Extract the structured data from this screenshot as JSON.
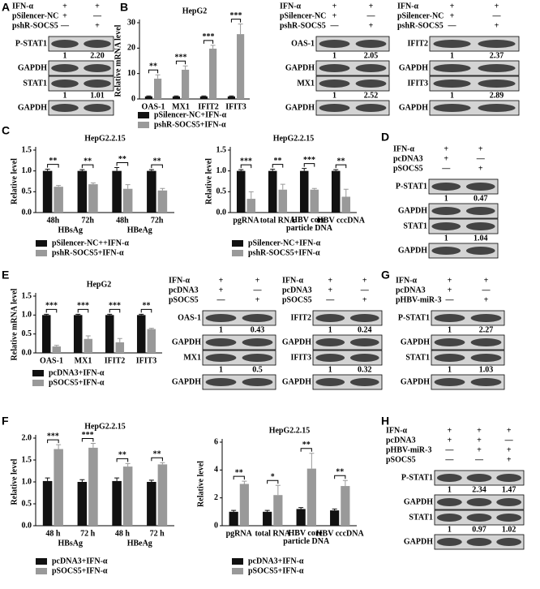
{
  "panel_letters": [
    "A",
    "B",
    "C",
    "D",
    "E",
    "F",
    "G",
    "H"
  ],
  "chart_data": [
    {
      "type": "bar",
      "title": "HepG2",
      "y_label": "Relative mRNA level",
      "categories": [
        "OAS-1",
        "MX1",
        "IFIT2",
        "IFIT3"
      ],
      "series": [
        {
          "name": "pSilencer-NC+IFN-α",
          "color": "#111111",
          "values": [
            1,
            1,
            1,
            1
          ],
          "errors": [
            0.2,
            0.2,
            0.2,
            0.2
          ]
        },
        {
          "name": "pshR-SOCS5+IFN-α",
          "color": "#999999",
          "values": [
            8,
            11.5,
            19.8,
            25.5
          ],
          "errors": [
            1.5,
            1.5,
            1.3,
            4
          ]
        }
      ],
      "significance": [
        "**",
        "***",
        "***",
        "***"
      ],
      "ylim": [
        0,
        30
      ],
      "yticks": [
        0,
        10,
        20,
        30
      ],
      "legend": "bottom"
    },
    {
      "type": "bar",
      "title": "HepG2.2.15",
      "y_label": "Relative level",
      "categories": [
        "48h",
        "72h",
        "48h",
        "72h"
      ],
      "group_labels": [
        "HBsAg",
        null,
        "HBeAg",
        null
      ],
      "series": [
        {
          "name": "pSilencer-NC++IFN-α",
          "color": "#111111",
          "values": [
            1,
            1,
            1,
            1
          ],
          "errors": [
            0.04,
            0.03,
            0.08,
            0.03
          ]
        },
        {
          "name": "pshR-SOCS5+IFN-α",
          "color": "#999999",
          "values": [
            0.62,
            0.68,
            0.57,
            0.53
          ],
          "errors": [
            0.03,
            0.03,
            0.1,
            0.05
          ]
        }
      ],
      "significance": [
        "**",
        "**",
        "**",
        "**"
      ],
      "ylim": [
        0,
        1.5
      ],
      "yticks": [
        {
          "value": 0,
          "label": "0.0"
        },
        0.5,
        {
          "value": 1,
          "label": "1.0"
        },
        1.5
      ],
      "legend": "bottom"
    },
    {
      "type": "bar",
      "title": "HepG2.2.15",
      "y_label": "Relative level",
      "categories": [
        "pgRNA",
        "total RNA",
        "HBV core particle DNA",
        "HBV cccDNA"
      ],
      "series": [
        {
          "name": "pSilencer-NC+IFN-α",
          "color": "#111111",
          "values": [
            1,
            1,
            1,
            1
          ],
          "errors": [
            0.03,
            0.04,
            0.06,
            0.03
          ]
        },
        {
          "name": "pshR-SOCS5+IFN-α",
          "color": "#999999",
          "values": [
            0.33,
            0.55,
            0.55,
            0.38
          ],
          "errors": [
            0.17,
            0.13,
            0.03,
            0.18
          ]
        }
      ],
      "significance": [
        "***",
        "**",
        "***",
        "**"
      ],
      "ylim": [
        0,
        1.5
      ],
      "yticks": [
        {
          "value": 0,
          "label": "0.0"
        },
        0.5,
        {
          "value": 1,
          "label": "1.0"
        },
        1.5
      ],
      "legend": "bottom"
    },
    {
      "type": "bar",
      "title": "HepG2",
      "y_label": "Relative mRNA level",
      "categories": [
        "OAS-1",
        "MX1",
        "IFIT2",
        "IFIT3"
      ],
      "series": [
        {
          "name": "pcDNA3+IFN-α",
          "color": "#111111",
          "values": [
            1,
            1,
            1,
            1
          ],
          "errors": [
            0.02,
            0.02,
            0.02,
            0.02
          ]
        },
        {
          "name": "pSOCS5+IFN-α",
          "color": "#999999",
          "values": [
            0.17,
            0.37,
            0.28,
            0.63
          ],
          "errors": [
            0.03,
            0.08,
            0.1,
            0.02
          ]
        }
      ],
      "significance": [
        "***",
        "***",
        "***",
        "**"
      ],
      "ylim": [
        0,
        1.5
      ],
      "yticks": [
        {
          "value": 0,
          "label": "0.0"
        },
        0.5,
        {
          "value": 1,
          "label": "1.0"
        },
        1.5
      ],
      "legend": "bottom"
    },
    {
      "type": "bar",
      "title": "HepG2.2.15",
      "y_label": "Relative level",
      "categories": [
        "48 h",
        "72 h",
        "48 h",
        "72 h"
      ],
      "group_labels": [
        "HBsAg",
        null,
        "HBeAg",
        null
      ],
      "series": [
        {
          "name": "pcDNA3+IFN-α",
          "color": "#111111",
          "values": [
            1.02,
            1,
            1.02,
            1
          ],
          "errors": [
            0.07,
            0.05,
            0.07,
            0.04
          ]
        },
        {
          "name": "pSOCS5+IFN-α",
          "color": "#999999",
          "values": [
            1.75,
            1.78,
            1.35,
            1.4
          ],
          "errors": [
            0.1,
            0.1,
            0.07,
            0.04
          ]
        }
      ],
      "significance": [
        "***",
        "***",
        "**",
        "**"
      ],
      "ylim": [
        0,
        2
      ],
      "yticks": [
        {
          "value": 0,
          "label": "0.0"
        },
        0.5,
        {
          "value": 1,
          "label": "1.0"
        },
        1.5,
        {
          "value": 2,
          "label": "2.0"
        }
      ],
      "legend": "bottom"
    },
    {
      "type": "bar",
      "title": "HepG2.2.15",
      "y_label": "Relative level",
      "categories": [
        "pgRNA",
        "total RNA",
        "HBV core particle DNA",
        "HBV cccDNA"
      ],
      "series": [
        {
          "name": "pcDNA3+IFN-α",
          "color": "#111111",
          "values": [
            1,
            1,
            1.2,
            1.1
          ],
          "errors": [
            0.1,
            0.1,
            0.1,
            0.1
          ]
        },
        {
          "name": "pSOCS5+IFN-α",
          "color": "#999999",
          "values": [
            3,
            2.2,
            4.1,
            2.85
          ],
          "errors": [
            0.2,
            0.7,
            1.1,
            0.4
          ]
        }
      ],
      "significance": [
        "**",
        "*",
        "**",
        "**"
      ],
      "ylim": [
        0,
        6
      ],
      "yticks": [
        0,
        2,
        4,
        6
      ],
      "legend": "bottom"
    }
  ],
  "blots": [
    {
      "conditions": [
        {
          "label": "IFN-α",
          "marks": [
            "+",
            "+"
          ]
        },
        {
          "label": "pSilencer-NC",
          "marks": [
            "+",
            "—"
          ]
        },
        {
          "label": "pshR-SOCS5",
          "marks": [
            "—",
            "+"
          ]
        }
      ],
      "bands": [
        {
          "label": "P-STAT1",
          "quant": [
            "1",
            "2.20"
          ]
        },
        {
          "label": "GAPDH"
        },
        {
          "label": "STAT1",
          "quant": [
            "1",
            "1.01"
          ]
        },
        {
          "label": "GAPDH"
        }
      ]
    },
    {
      "conditions": [
        {
          "label": "IFN-α",
          "marks": [
            "+",
            "+"
          ]
        },
        {
          "label": "pSilencer-NC",
          "marks": [
            "+",
            "—"
          ]
        },
        {
          "label": "pshR-SOCS5",
          "marks": [
            "—",
            "+"
          ]
        }
      ],
      "bands": [
        {
          "label": "OAS-1",
          "quant": [
            "1",
            "2.05"
          ]
        },
        {
          "label": "GAPDH"
        },
        {
          "label": "MX1",
          "quant": [
            "1",
            "2.52"
          ]
        },
        {
          "label": "GAPDH"
        }
      ]
    },
    {
      "conditions": [
        {
          "label": "IFN-α",
          "marks": [
            "+",
            "+"
          ]
        },
        {
          "label": "pSilencer-NC",
          "marks": [
            "+",
            "—"
          ]
        },
        {
          "label": "pshR-SOCS5",
          "marks": [
            "—",
            "+"
          ]
        }
      ],
      "bands": [
        {
          "label": "IFIT2",
          "quant": [
            "1",
            "2.37"
          ]
        },
        {
          "label": "GAPDH"
        },
        {
          "label": "IFIT3",
          "quant": [
            "1",
            "2.89"
          ]
        },
        {
          "label": "GAPDH"
        }
      ]
    },
    {
      "conditions": [
        {
          "label": "IFN-α",
          "marks": [
            "+",
            "+"
          ]
        },
        {
          "label": "pcDNA3",
          "marks": [
            "+",
            "—"
          ]
        },
        {
          "label": "pSOCS5",
          "marks": [
            "—",
            "+"
          ]
        }
      ],
      "bands": [
        {
          "label": "P-STAT1",
          "quant": [
            "1",
            "0.47"
          ]
        },
        {
          "label": "GAPDH"
        },
        {
          "label": "STAT1",
          "quant": [
            "1",
            "1.04"
          ]
        },
        {
          "label": "GAPDH"
        }
      ]
    },
    {
      "conditions": [
        {
          "label": "IFN-α",
          "marks": [
            "+",
            "+"
          ]
        },
        {
          "label": "pcDNA3",
          "marks": [
            "+",
            "—"
          ]
        },
        {
          "label": "pSOCS5",
          "marks": [
            "—",
            "+"
          ]
        }
      ],
      "bands": [
        {
          "label": "OAS-1",
          "quant": [
            "1",
            "0.43"
          ]
        },
        {
          "label": "GAPDH"
        },
        {
          "label": "MX1",
          "quant": [
            "1",
            "0.5"
          ]
        },
        {
          "label": "GAPDH"
        }
      ]
    },
    {
      "conditions": [
        {
          "label": "IFN-α",
          "marks": [
            "+",
            "+"
          ]
        },
        {
          "label": "pcDNA3",
          "marks": [
            "+",
            "—"
          ]
        },
        {
          "label": "pSOCS5",
          "marks": [
            "—",
            "+"
          ]
        }
      ],
      "bands": [
        {
          "label": "IFIT2",
          "quant": [
            "1",
            "0.24"
          ]
        },
        {
          "label": "GAPDH"
        },
        {
          "label": "IFIT3",
          "quant": [
            "1",
            "0.32"
          ]
        },
        {
          "label": "GAPDH"
        }
      ]
    },
    {
      "conditions": [
        {
          "label": "IFN-α",
          "marks": [
            "+",
            "+"
          ]
        },
        {
          "label": "pcDNA3",
          "marks": [
            "+",
            "—"
          ]
        },
        {
          "label": "pHBV-miR-3",
          "marks": [
            "—",
            "+"
          ]
        }
      ],
      "bands": [
        {
          "label": "P-STAT1",
          "quant": [
            "1",
            "2.27"
          ]
        },
        {
          "label": "GAPDH"
        },
        {
          "label": "STAT1",
          "quant": [
            "1",
            "1.03"
          ]
        },
        {
          "label": "GAPDH"
        }
      ]
    },
    {
      "conditions": [
        {
          "label": "IFN-α",
          "marks": [
            "+",
            "+",
            "+"
          ]
        },
        {
          "label": "pcDNA3",
          "marks": [
            "+",
            "+",
            "—"
          ]
        },
        {
          "label": "pHBV-miR-3",
          "marks": [
            "—",
            "+",
            "+"
          ]
        },
        {
          "label": "pSOCS5",
          "marks": [
            "—",
            "—",
            "+"
          ]
        }
      ],
      "bands": [
        {
          "label": "P-STAT1",
          "quant": [
            "1",
            "2.34",
            "1.47"
          ]
        },
        {
          "label": "GAPDH"
        },
        {
          "label": "STAT1",
          "quant": [
            "1",
            "0.97",
            "1.02"
          ]
        },
        {
          "label": "GAPDH"
        }
      ]
    }
  ]
}
